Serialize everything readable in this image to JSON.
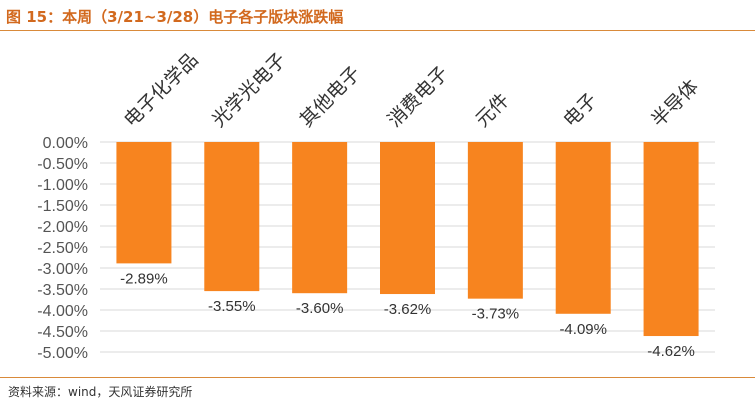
{
  "header": {
    "title": "图 15：本周（3/21~3/28）电子各子版块涨跌幅"
  },
  "footer": {
    "source": "资料来源：wind，天风证券研究所"
  },
  "colors": {
    "bar": "#f7841f",
    "grid": "#d9d9d9",
    "accent": "#d2691e"
  },
  "chart_data": {
    "type": "bar",
    "categories": [
      "电子化学品",
      "光学光电子",
      "其他电子",
      "消费电子",
      "元件",
      "电子",
      "半导体"
    ],
    "values": [
      -2.89,
      -3.55,
      -3.6,
      -3.62,
      -3.73,
      -4.09,
      -4.62
    ],
    "data_labels": [
      "-2.89%",
      "-3.55%",
      "-3.60%",
      "-3.62%",
      "-3.73%",
      "-4.09%",
      "-4.62%"
    ],
    "ylim": [
      -5.0,
      0.0
    ],
    "yticks": [
      0,
      -0.5,
      -1,
      -1.5,
      -2,
      -2.5,
      -3,
      -3.5,
      -4,
      -4.5,
      -5
    ],
    "ytick_labels": [
      "0.00%",
      "-0.50%",
      "-1.00%",
      "-1.50%",
      "-2.00%",
      "-2.50%",
      "-3.00%",
      "-3.50%",
      "-4.00%",
      "-4.50%",
      "-5.00%"
    ],
    "grid": true,
    "legend": "none",
    "xaxis_position": "top"
  }
}
